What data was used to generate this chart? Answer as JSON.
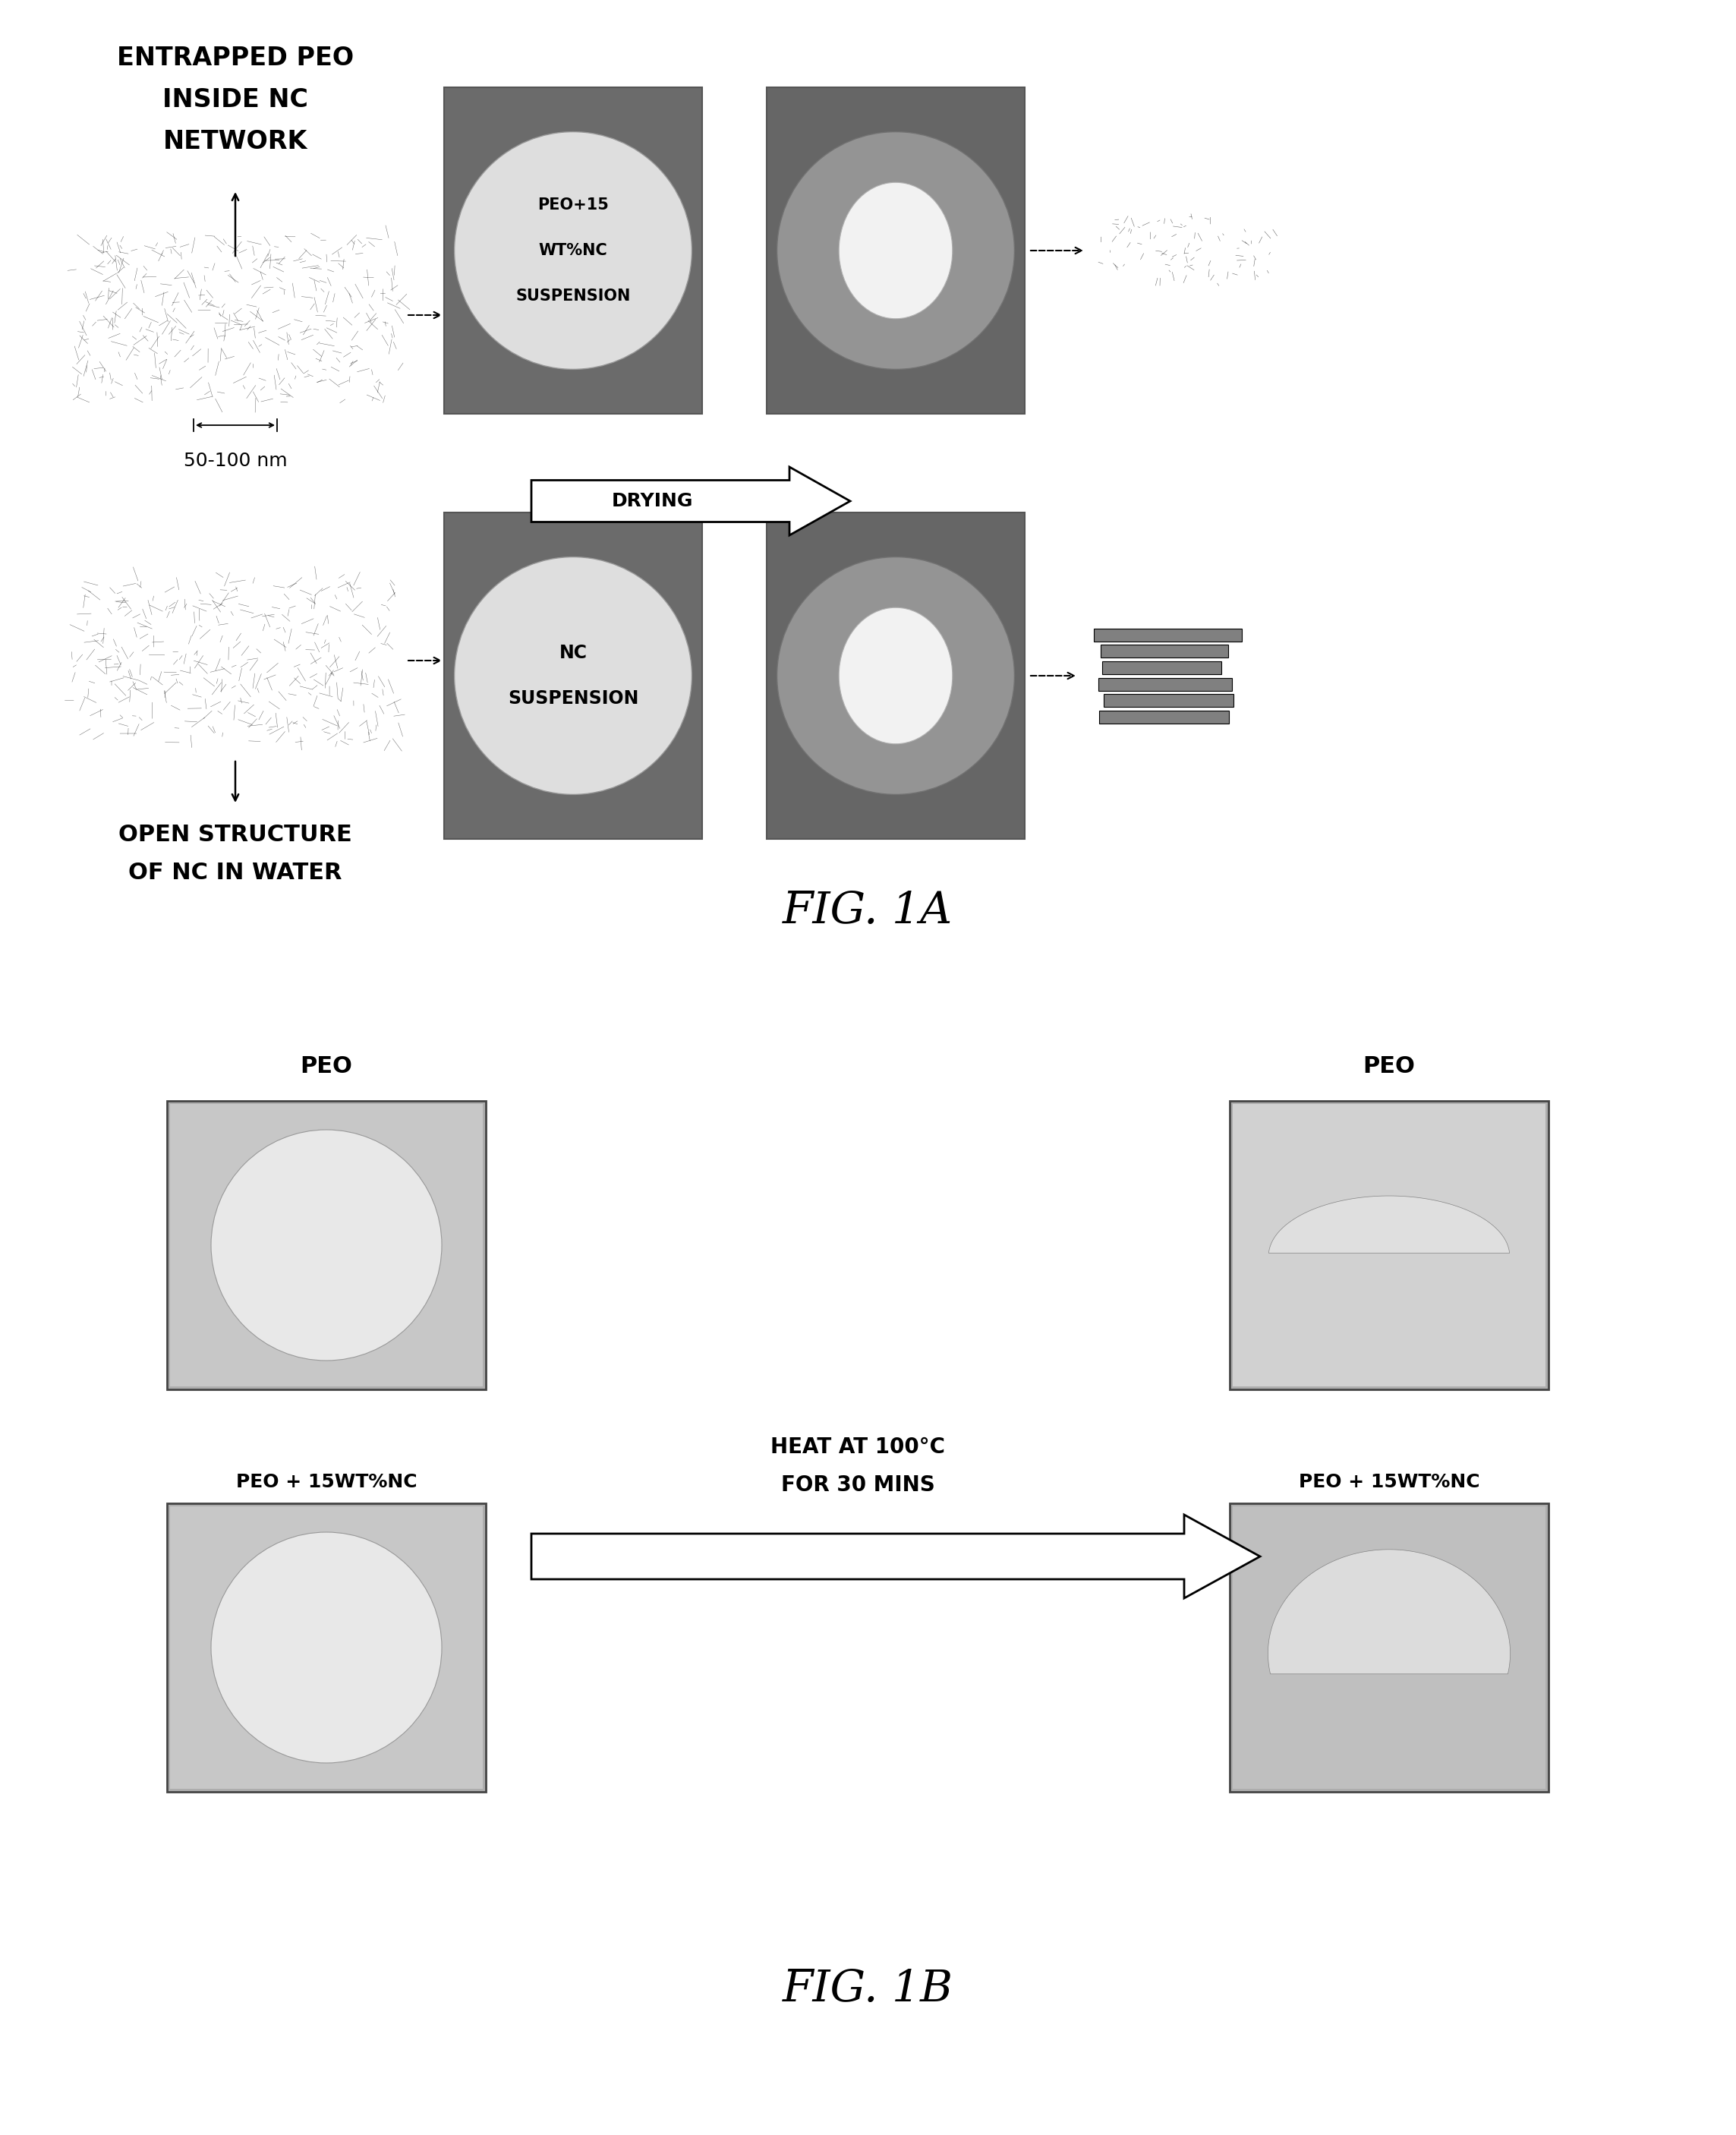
{
  "fig_width": 22.87,
  "fig_height": 28.12,
  "bg_color": "#ffffff",
  "panel_a": {
    "title": "FIG. 1A",
    "top_left_texts": [
      "ENTRAPPED PEO",
      "INSIDE NC",
      "NETWORK"
    ],
    "bottom_left_texts": [
      "OPEN STRUCTURE",
      "OF NC IN WATER"
    ],
    "scale_bar": "50-100 nm",
    "img1_label": [
      "PEO+15",
      "WT%NC",
      "SUSPENSION"
    ],
    "img3_label": [
      "NC",
      "SUSPENSION"
    ],
    "drying_text": "DRYING"
  },
  "panel_b": {
    "title": "FIG. 1B",
    "label_tl": "PEO",
    "label_bl": "PEO + 15WT%NC",
    "label_tr": "PEO",
    "label_br": "PEO + 15WT%NC",
    "heat_line1": "HEAT AT 100°C",
    "heat_line2": "FOR 30 MINS"
  },
  "img_bg_dark": 0.45,
  "img_bg_light": 0.88,
  "img_disk_white": 0.95,
  "text_fontsize": 13,
  "label_fontsize": 11
}
